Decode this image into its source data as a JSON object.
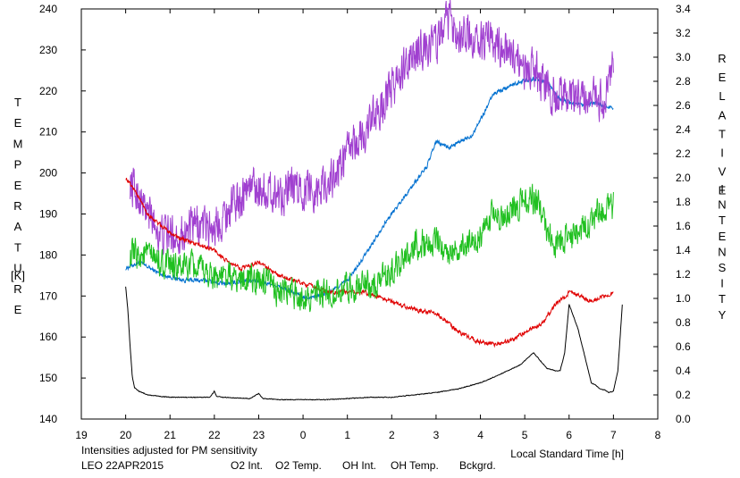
{
  "chart_data": {
    "type": "line",
    "x_ticks": [
      "19",
      "20",
      "21",
      "22",
      "23",
      "0",
      "1",
      "2",
      "3",
      "4",
      "5",
      "6",
      "7",
      "8"
    ],
    "x_range": [
      19,
      32
    ],
    "y_left_range": [
      140,
      240
    ],
    "y_left_ticks": [
      "140",
      "150",
      "160",
      "170",
      "180",
      "190",
      "200",
      "210",
      "220",
      "230",
      "240"
    ],
    "y_right_range": [
      0.0,
      3.4
    ],
    "y_right_ticks": [
      "0.0",
      "0.2",
      "0.4",
      "0.6",
      "0.8",
      "1.0",
      "1.2",
      "1.4",
      "1.6",
      "1.8",
      "2.0",
      "2.2",
      "2.4",
      "2.6",
      "2.8",
      "3.0",
      "3.2",
      "3.4"
    ],
    "ylabel_left_letters": [
      "T",
      "E",
      "M",
      "P",
      "E",
      "R",
      "A",
      "T",
      "U",
      "R",
      "E"
    ],
    "ylabel_left_unit": "[K]",
    "ylabel_right_word1": [
      "R",
      "E",
      "L",
      "A",
      "T",
      "I",
      "V",
      "E"
    ],
    "ylabel_right_word2": [
      "I",
      "N",
      "T",
      "E",
      "N",
      "S",
      "I",
      "T",
      "Y"
    ],
    "xlabel": "Local Standard Time [h]",
    "note": "Intensities adjusted for PM sensitivity",
    "station": "LEO 22APR2015",
    "grid": false,
    "legend_position": "bottom",
    "series": [
      {
        "name": "O2 Int.",
        "axis": "right",
        "color": "#0070d0",
        "noise": 0.025,
        "x": [
          20.0,
          20.3,
          20.8,
          21.3,
          21.8,
          22.2,
          22.8,
          23.3,
          23.8,
          24.0,
          24.3,
          24.6,
          25.0,
          25.3,
          25.8,
          26.3,
          26.8,
          27.0,
          27.3,
          27.8,
          28.1,
          28.3,
          28.6,
          28.9,
          29.2,
          29.5,
          29.8,
          30.2,
          30.6,
          30.8,
          31.0
        ],
        "y": [
          1.25,
          1.3,
          1.2,
          1.15,
          1.15,
          1.12,
          1.15,
          1.12,
          1.05,
          1.0,
          1.02,
          1.05,
          1.15,
          1.3,
          1.6,
          1.85,
          2.1,
          2.3,
          2.25,
          2.35,
          2.55,
          2.7,
          2.75,
          2.8,
          2.82,
          2.8,
          2.65,
          2.6,
          2.62,
          2.6,
          2.58
        ]
      },
      {
        "name": "O2 Temp.",
        "axis": "left",
        "color": "#a040d0",
        "noise": 7,
        "x": [
          20.1,
          20.4,
          20.8,
          21.2,
          21.6,
          22.0,
          22.4,
          22.8,
          23.3,
          23.8,
          24.3,
          24.7,
          25.0,
          25.4,
          25.8,
          26.2,
          26.6,
          27.0,
          27.3,
          27.6,
          28.0,
          28.3,
          28.6,
          29.0,
          29.3,
          29.6,
          30.0,
          30.4,
          30.8,
          31.0
        ],
        "y": [
          198,
          192,
          185,
          185,
          187,
          187,
          192,
          197,
          195,
          196,
          196,
          199,
          205,
          210,
          217,
          224,
          230,
          232,
          237,
          234,
          232,
          232,
          230,
          226,
          224,
          219,
          218,
          218,
          217,
          226
        ]
      },
      {
        "name": "OH Int.",
        "axis": "right",
        "color": "#e00000",
        "noise": 0.025,
        "x": [
          20.0,
          20.2,
          20.5,
          20.8,
          21.2,
          21.6,
          22.0,
          22.3,
          22.6,
          23.0,
          23.4,
          23.8,
          24.2,
          24.6,
          25.0,
          25.4,
          25.8,
          26.2,
          26.6,
          27.0,
          27.2,
          27.5,
          27.9,
          28.3,
          28.7,
          29.0,
          29.4,
          29.7,
          30.0,
          30.5,
          31.0
        ],
        "y": [
          2.0,
          1.9,
          1.7,
          1.6,
          1.5,
          1.45,
          1.4,
          1.3,
          1.25,
          1.3,
          1.2,
          1.15,
          1.1,
          1.05,
          1.05,
          1.05,
          1.0,
          0.95,
          0.9,
          0.88,
          0.82,
          0.72,
          0.65,
          0.62,
          0.65,
          0.72,
          0.8,
          0.95,
          1.05,
          0.98,
          1.05
        ]
      },
      {
        "name": "OH Temp.",
        "axis": "left",
        "color": "#20c020",
        "noise": 5,
        "x": [
          20.1,
          20.5,
          21.0,
          21.5,
          22.0,
          22.5,
          23.0,
          23.5,
          24.0,
          24.5,
          25.0,
          25.3,
          25.6,
          26.0,
          26.3,
          26.6,
          27.0,
          27.3,
          27.6,
          28.0,
          28.3,
          28.6,
          29.0,
          29.3,
          29.6,
          29.9,
          30.3,
          30.6,
          31.0
        ],
        "y": [
          180,
          180,
          177,
          177,
          175,
          174,
          174,
          171,
          170,
          170,
          172,
          173,
          172,
          176,
          180,
          183,
          183,
          181,
          182,
          185,
          190,
          190,
          194,
          193,
          183,
          184,
          186,
          190,
          192
        ]
      },
      {
        "name": "Bckgrd.",
        "axis": "right",
        "color": "#000000",
        "noise": 0.004,
        "x": [
          20.0,
          20.05,
          20.1,
          20.15,
          20.2,
          20.3,
          20.5,
          21.0,
          21.5,
          21.9,
          22.0,
          22.05,
          22.2,
          22.8,
          23.0,
          23.1,
          23.5,
          24.0,
          24.5,
          25.0,
          25.5,
          26.0,
          26.5,
          27.0,
          27.5,
          28.0,
          28.5,
          28.9,
          29.2,
          29.5,
          29.7,
          29.8,
          29.9,
          30.0,
          30.2,
          30.4,
          30.5,
          30.6,
          30.7,
          30.8,
          30.9,
          31.0,
          31.1,
          31.2
        ],
        "y": [
          1.1,
          0.9,
          0.6,
          0.35,
          0.26,
          0.23,
          0.2,
          0.18,
          0.18,
          0.18,
          0.23,
          0.19,
          0.18,
          0.17,
          0.21,
          0.17,
          0.16,
          0.16,
          0.16,
          0.17,
          0.18,
          0.18,
          0.2,
          0.22,
          0.25,
          0.3,
          0.38,
          0.45,
          0.55,
          0.42,
          0.4,
          0.4,
          0.55,
          0.95,
          0.75,
          0.45,
          0.3,
          0.28,
          0.25,
          0.24,
          0.22,
          0.23,
          0.4,
          0.95
        ]
      }
    ]
  }
}
